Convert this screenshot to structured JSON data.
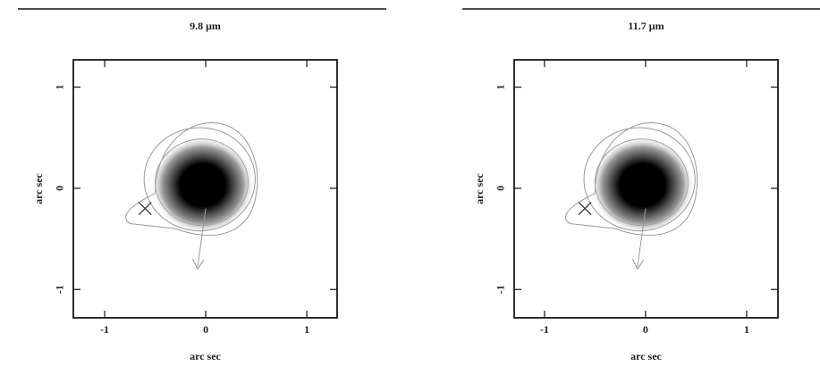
{
  "chart_data": [
    {
      "type": "image",
      "title": "9.8 μm",
      "xlabel": "arc sec",
      "ylabel": "arc sec",
      "xlim": [
        -1.31,
        1.3
      ],
      "ylim": [
        -1.28,
        1.27
      ],
      "xticks": [
        -1,
        0,
        1
      ],
      "yticks": [
        -1,
        0,
        1
      ],
      "points": {
        "x": [
          -0.6
        ],
        "y": [
          -0.2
        ]
      }
    },
    {
      "type": "image",
      "title": "11.7 μm",
      "xlabel": "arc sec",
      "ylabel": "arc sec",
      "xlim": [
        -1.3,
        1.31
      ],
      "ylim": [
        -1.28,
        1.27
      ],
      "xticks": [
        -1,
        0,
        1
      ],
      "yticks": [
        -1,
        0,
        1
      ],
      "points": {
        "x": [
          -0.6
        ],
        "y": [
          -0.2
        ]
      }
    }
  ]
}
